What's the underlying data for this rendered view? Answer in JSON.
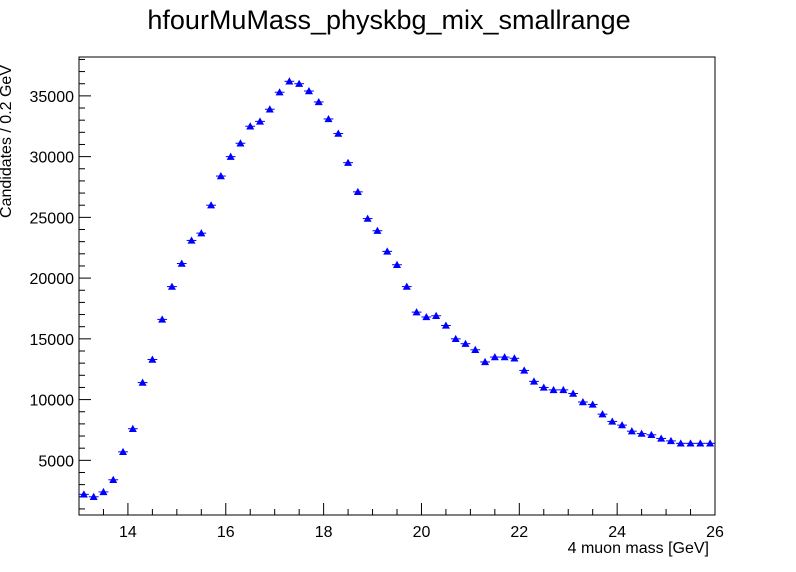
{
  "chart_data": {
    "type": "scatter",
    "title": "hfourMuMass_physkbg_mix_smallrange",
    "xlabel": "4 muon mass [GeV]",
    "ylabel": "Candidates / 0.2 GeV",
    "xlim": [
      13,
      26
    ],
    "ylim": [
      500,
      38200
    ],
    "x_ticks": [
      14,
      16,
      18,
      20,
      22,
      24,
      26
    ],
    "y_ticks": [
      5000,
      10000,
      15000,
      20000,
      25000,
      30000,
      35000
    ],
    "bin_width": 0.2,
    "marker": "triangle-up",
    "marker_color": "#0000ff",
    "grid": false,
    "legend": "none",
    "x": [
      13.1,
      13.3,
      13.5,
      13.7,
      13.9,
      14.1,
      14.3,
      14.5,
      14.7,
      14.9,
      15.1,
      15.3,
      15.5,
      15.7,
      15.9,
      16.1,
      16.3,
      16.5,
      16.7,
      16.9,
      17.1,
      17.3,
      17.5,
      17.7,
      17.9,
      18.1,
      18.3,
      18.5,
      18.7,
      18.9,
      19.1,
      19.3,
      19.5,
      19.7,
      19.9,
      20.1,
      20.3,
      20.5,
      20.7,
      20.9,
      21.1,
      21.3,
      21.5,
      21.7,
      21.9,
      22.1,
      22.3,
      22.5,
      22.7,
      22.9,
      23.1,
      23.3,
      23.5,
      23.7,
      23.9,
      24.1,
      24.3,
      24.5,
      24.7,
      24.9,
      25.1,
      25.3,
      25.5,
      25.7,
      25.9
    ],
    "values": [
      2200,
      2000,
      2400,
      3400,
      5700,
      7600,
      11400,
      13300,
      16600,
      19300,
      21200,
      23100,
      23700,
      26000,
      28400,
      30000,
      31100,
      32500,
      32900,
      33900,
      35300,
      36200,
      36000,
      35400,
      34500,
      33100,
      31900,
      29500,
      27100,
      24900,
      23900,
      22200,
      21100,
      19300,
      17200,
      16800,
      16900,
      16100,
      15000,
      14600,
      14100,
      13100,
      13500,
      13500,
      13400,
      12400,
      11500,
      11000,
      10800,
      10800,
      10500,
      9800,
      9600,
      8800,
      8200,
      7900,
      7400,
      7200,
      7100,
      6800,
      6600,
      6400,
      6400,
      6400,
      6400
    ]
  }
}
